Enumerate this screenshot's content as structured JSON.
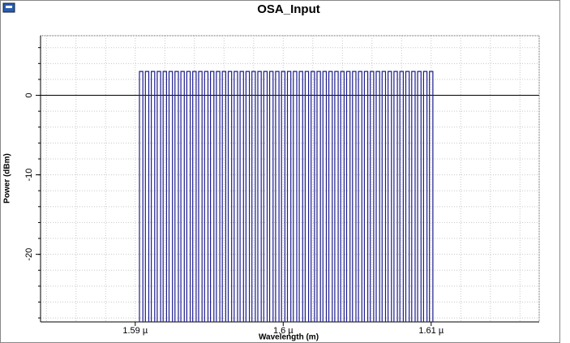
{
  "chart_data": {
    "type": "spectrum",
    "title": "OSA_Input",
    "x_label": "Wavelength (m)",
    "y_label": "Power (dBm)",
    "color": "#1c1c8e",
    "x": [
      1.5904e-06,
      1.5908e-06,
      1.5912e-06,
      1.5916e-06,
      1.592e-06,
      1.5924e-06,
      1.5928e-06,
      1.5932e-06,
      1.5936e-06,
      1.594e-06,
      1.5944e-06,
      1.5948e-06,
      1.5952e-06,
      1.5956e-06,
      1.596e-06,
      1.5964e-06,
      1.5968e-06,
      1.5972e-06,
      1.5976e-06,
      1.598e-06,
      1.5984e-06,
      1.5988e-06,
      1.5992e-06,
      1.5996e-06,
      1.6e-06,
      1.6004e-06,
      1.6008e-06,
      1.6012e-06,
      1.6016e-06,
      1.602e-06,
      1.6024e-06,
      1.6028e-06,
      1.6032e-06,
      1.6036e-06,
      1.604e-06,
      1.6044e-06,
      1.6048e-06,
      1.6052e-06,
      1.6056e-06,
      1.606e-06,
      1.6064e-06,
      1.6068e-06,
      1.6072e-06,
      1.6076e-06,
      1.608e-06,
      1.6084e-06,
      1.6088e-06,
      1.6092e-06,
      1.6096e-06,
      1.61e-06
    ],
    "values": [
      3,
      3,
      3,
      3,
      3,
      3,
      3,
      3,
      3,
      3,
      3,
      3,
      3,
      3,
      3,
      3,
      3,
      3,
      3,
      3,
      3,
      3,
      3,
      3,
      3,
      3,
      3,
      3,
      3,
      3,
      3,
      3,
      3,
      3,
      3,
      3,
      3,
      3,
      3,
      3,
      3,
      3,
      3,
      3,
      3,
      3,
      3,
      3,
      3,
      3
    ],
    "xlim": [
      1.5836e-06,
      1.6173e-06
    ],
    "ylim": [
      -28.5,
      7.5
    ],
    "xticks": [
      {
        "value": 1.59e-06,
        "label": "1.59 µ"
      },
      {
        "value": 1.6e-06,
        "label": "1.6 µ"
      },
      {
        "value": 1.61e-06,
        "label": "1.61 µ"
      }
    ],
    "yticks": [
      0,
      -10,
      -20
    ],
    "minor_xticks": [
      1.584e-06,
      1.586e-06,
      1.588e-06,
      1.59e-06,
      1.592e-06,
      1.594e-06,
      1.596e-06,
      1.598e-06,
      1.6e-06,
      1.602e-06,
      1.604e-06,
      1.606e-06,
      1.608e-06,
      1.61e-06,
      1.612e-06,
      1.614e-06,
      1.616e-06
    ],
    "minor_yticks": [
      -28,
      -26,
      -24,
      -22,
      -20,
      -18,
      -16,
      -14,
      -12,
      -10,
      -8,
      -6,
      -4,
      -2,
      0,
      2,
      4,
      6
    ],
    "grid": true
  }
}
